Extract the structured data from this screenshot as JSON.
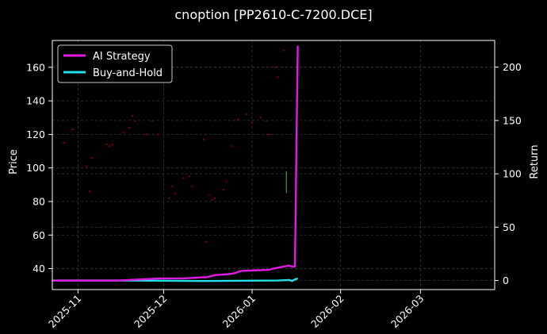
{
  "chart_data": {
    "type": "line",
    "title": "cnoption [PP2610-C-7200.DCE]",
    "ylabel": "Price",
    "y2label": "Return",
    "ylim": [
      27.5,
      176
    ],
    "y2lim": [
      -8.5,
      225
    ],
    "yticks": [
      40,
      60,
      80,
      100,
      120,
      140,
      160
    ],
    "y2ticks": [
      0,
      50,
      100,
      150,
      200
    ],
    "xlim": [
      "2025-10-23",
      "2026-03-27"
    ],
    "xticks": [
      {
        "date": "2025-11-01",
        "label": "2025-11"
      },
      {
        "date": "2025-12-01",
        "label": "2025-12"
      },
      {
        "date": "2026-01-01",
        "label": "2026-01"
      },
      {
        "date": "2026-02-01",
        "label": "2026-02"
      },
      {
        "date": "2026-03-01",
        "label": "2026-03"
      }
    ],
    "grid": true,
    "legend_position": "top-left",
    "price_points": {
      "color": "#8b0000",
      "x": [
        "2025-10-27",
        "2025-10-30",
        "2025-11-04",
        "2025-11-05",
        "2025-11-06",
        "2025-11-11",
        "2025-11-12",
        "2025-11-13",
        "2025-11-17",
        "2025-11-19",
        "2025-11-20",
        "2025-11-21",
        "2025-11-25",
        "2025-11-27",
        "2025-11-29",
        "2025-12-03",
        "2025-12-04",
        "2025-12-05",
        "2025-12-08",
        "2025-12-10",
        "2025-12-11",
        "2025-12-15",
        "2025-12-16",
        "2025-12-17",
        "2025-12-18",
        "2025-12-19",
        "2025-12-22",
        "2025-12-23",
        "2025-12-25",
        "2025-12-27",
        "2025-12-30",
        "2026-01-01",
        "2026-01-04",
        "2026-01-06",
        "2026-01-07",
        "2026-01-09",
        "2026-01-10",
        "2026-01-12"
      ],
      "y": [
        115,
        123,
        101,
        86,
        106,
        114,
        113,
        114,
        121,
        124,
        131,
        128,
        120,
        128,
        120,
        82,
        89,
        85,
        94,
        95,
        89,
        117,
        56,
        84,
        81,
        82,
        87,
        92,
        113,
        129,
        132,
        127,
        130,
        128,
        120,
        160,
        154,
        170
      ]
    },
    "series": [
      {
        "name": "AI Strategy",
        "color": "#e31ae3",
        "axis": "right",
        "x": [
          "2025-10-23",
          "2025-11-15",
          "2025-11-30",
          "2025-12-08",
          "2025-12-15",
          "2025-12-16",
          "2025-12-19",
          "2025-12-24",
          "2025-12-26",
          "2025-12-28",
          "2026-01-07",
          "2026-01-08",
          "2026-01-12",
          "2026-01-14",
          "2026-01-15",
          "2026-01-16",
          "2026-01-17"
        ],
        "y": [
          0,
          0,
          2,
          2,
          3,
          3,
          5,
          6,
          7,
          9,
          10,
          11,
          13,
          14,
          13,
          13,
          220
        ]
      },
      {
        "name": "Buy-and-Hold",
        "color": "#22e0e8",
        "axis": "right",
        "x": [
          "2025-10-23",
          "2025-11-15",
          "2025-12-15",
          "2026-01-10",
          "2026-01-14",
          "2026-01-15",
          "2026-01-16",
          "2026-01-17"
        ],
        "y": [
          0,
          0,
          -0.5,
          0,
          0.5,
          -0.5,
          1,
          2
        ]
      }
    ],
    "annotation_segment": {
      "color": "#2ea043",
      "x": "2026-01-13",
      "y": [
        98,
        85
      ]
    }
  }
}
